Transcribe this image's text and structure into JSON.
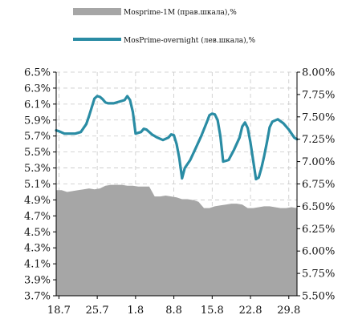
{
  "chart_data": {
    "type": "line",
    "title": "",
    "legend": {
      "placement": "top-center",
      "entries": [
        {
          "label": "Mosprime-1M (прав.шкала),%",
          "kind": "area",
          "color": "#a6a6a6"
        },
        {
          "label": "MosPrime-overnight (лев.шкала),%",
          "kind": "line",
          "color": "#2a8ca4"
        }
      ]
    },
    "grid": true,
    "x_ticks": [
      "18.7",
      "25.7",
      "1.8",
      "8.8",
      "15.8",
      "22.8",
      "29.8"
    ],
    "y_left": {
      "ticks": [
        "6.5%",
        "6.3%",
        "6.1%",
        "5.9%",
        "5.7%",
        "5.5%",
        "5.3%",
        "5.1%",
        "4.9%",
        "4.7%",
        "4.5%",
        "4.3%",
        "4.1%",
        "3.9%",
        "3.7%"
      ],
      "min": 3.7,
      "max": 6.5
    },
    "y_right": {
      "ticks": [
        "8.00%",
        "7.75%",
        "7.50%",
        "7.25%",
        "7.00%",
        "6.75%",
        "6.50%",
        "6.25%",
        "6.00%",
        "5.75%",
        "5.50%"
      ],
      "min": 5.5,
      "max": 8.0
    },
    "series": [
      {
        "name": "Mosprime-1M (прав.шкала),%",
        "axis": "right",
        "type": "area",
        "color": "#a6a6a6",
        "x": [
          17.5,
          18.5,
          19.5,
          20.5,
          21.5,
          22.5,
          23.5,
          24.5,
          25.5,
          26.5,
          27.5,
          28.5,
          29.5,
          30.5,
          31.5,
          32.5,
          33.5,
          34.5,
          35.5,
          36.5,
          37.5,
          38.5,
          39.5,
          40.5,
          41.5,
          42.5,
          43.5,
          44.5,
          45.5,
          46.5,
          47.5,
          48.5,
          49.5,
          50.5,
          51.5,
          52.5,
          53.5,
          54.5,
          55.5,
          56.5,
          57.5,
          58.5,
          59.5,
          60.5,
          61.5
        ],
        "values": [
          6.68,
          6.68,
          6.66,
          6.67,
          6.68,
          6.69,
          6.7,
          6.69,
          6.7,
          6.73,
          6.74,
          6.74,
          6.74,
          6.73,
          6.73,
          6.72,
          6.72,
          6.72,
          6.61,
          6.61,
          6.62,
          6.61,
          6.6,
          6.58,
          6.58,
          6.57,
          6.55,
          6.48,
          6.48,
          6.5,
          6.51,
          6.52,
          6.53,
          6.53,
          6.52,
          6.48,
          6.48,
          6.49,
          6.5,
          6.5,
          6.49,
          6.48,
          6.48,
          6.49,
          6.48
        ]
      },
      {
        "name": "MosPrime-overnight (лев.шкала),%",
        "axis": "left",
        "type": "line",
        "color": "#2a8ca4",
        "x": [
          17.5,
          18.0,
          19.0,
          20.0,
          21.0,
          22.0,
          23.0,
          23.5,
          24.5,
          25.0,
          25.5,
          26.0,
          26.5,
          27.0,
          28.0,
          29.0,
          30.0,
          30.5,
          31.0,
          31.5,
          32.0,
          33.0,
          33.5,
          34.0,
          34.5,
          35.0,
          36.0,
          37.0,
          38.0,
          38.5,
          39.0,
          39.5,
          40.0,
          40.5,
          41.0,
          42.0,
          43.0,
          44.0,
          45.0,
          45.5,
          46.0,
          46.5,
          47.0,
          47.5,
          48.0,
          49.0,
          50.0,
          51.0,
          51.5,
          52.0,
          52.5,
          53.0,
          54.0,
          54.5,
          55.0,
          55.5,
          56.0,
          56.5,
          57.0,
          58.0,
          59.0,
          60.0,
          61.0,
          61.5
        ],
        "values": [
          5.77,
          5.76,
          5.73,
          5.73,
          5.73,
          5.75,
          5.85,
          5.95,
          6.17,
          6.2,
          6.19,
          6.16,
          6.12,
          6.11,
          6.11,
          6.13,
          6.15,
          6.2,
          6.15,
          6.0,
          5.73,
          5.75,
          5.79,
          5.78,
          5.75,
          5.72,
          5.68,
          5.65,
          5.68,
          5.72,
          5.71,
          5.6,
          5.42,
          5.17,
          5.3,
          5.4,
          5.55,
          5.7,
          5.87,
          5.96,
          5.98,
          5.97,
          5.9,
          5.7,
          5.38,
          5.4,
          5.53,
          5.68,
          5.82,
          5.87,
          5.8,
          5.62,
          5.16,
          5.18,
          5.3,
          5.45,
          5.62,
          5.81,
          5.88,
          5.91,
          5.86,
          5.78,
          5.68,
          5.66
        ]
      }
    ]
  }
}
